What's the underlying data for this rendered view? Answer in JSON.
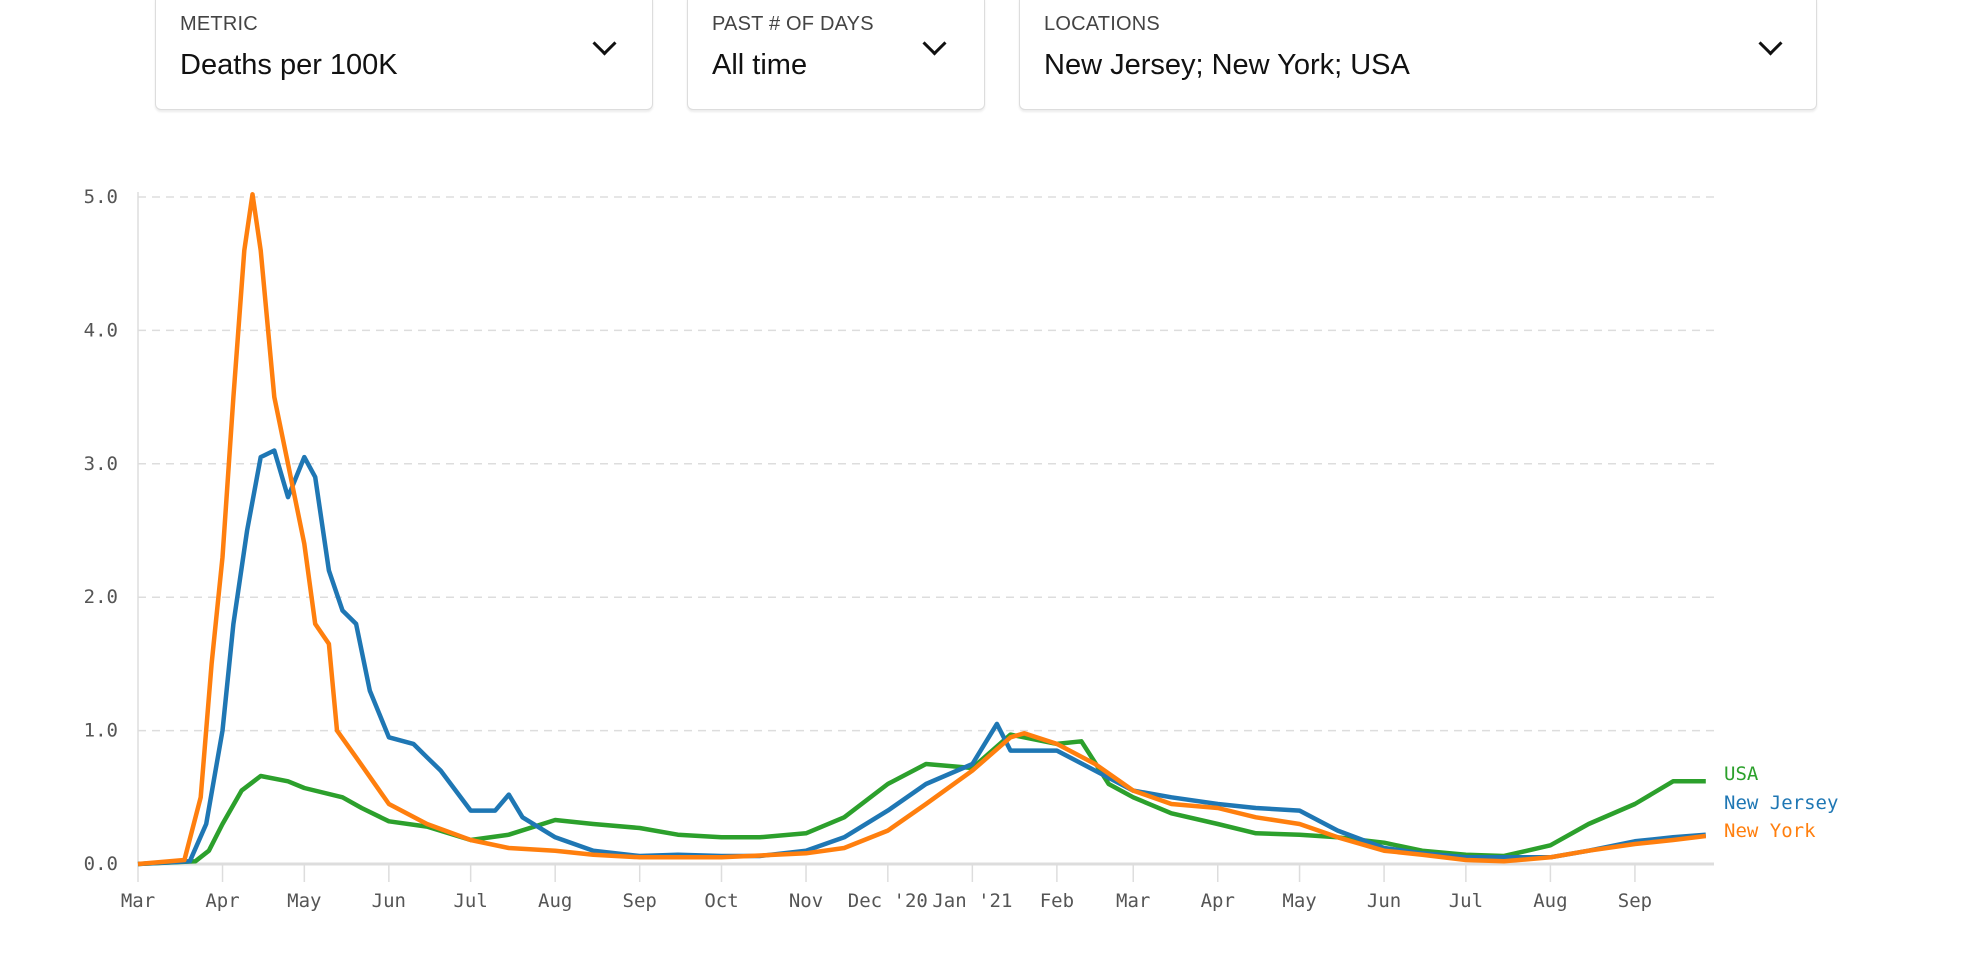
{
  "controls": {
    "metric": {
      "label": "METRIC",
      "value": "Deaths per 100K"
    },
    "days": {
      "label": "PAST # OF DAYS",
      "value": "All time"
    },
    "locations": {
      "label": "LOCATIONS",
      "value": "New Jersey; New York; USA"
    }
  },
  "chart_data": {
    "type": "line",
    "title": "",
    "xlabel": "",
    "ylabel": "Deaths per 100K",
    "xlim": [
      "2020-03-01",
      "2021-09-30"
    ],
    "ylim": [
      0,
      5
    ],
    "grid": true,
    "legend_position": "right-end-of-lines",
    "y_ticks": [
      "0.0",
      "1.0",
      "2.0",
      "3.0",
      "4.0",
      "5.0"
    ],
    "x_ticks": [
      {
        "date": "2020-03-01",
        "label": "Mar"
      },
      {
        "date": "2020-04-01",
        "label": "Apr"
      },
      {
        "date": "2020-05-01",
        "label": "May"
      },
      {
        "date": "2020-06-01",
        "label": "Jun"
      },
      {
        "date": "2020-07-01",
        "label": "Jul"
      },
      {
        "date": "2020-08-01",
        "label": "Aug"
      },
      {
        "date": "2020-09-01",
        "label": "Sep"
      },
      {
        "date": "2020-10-01",
        "label": "Oct"
      },
      {
        "date": "2020-11-01",
        "label": "Nov"
      },
      {
        "date": "2020-12-01",
        "label": "Dec '20"
      },
      {
        "date": "2021-01-01",
        "label": "Jan '21"
      },
      {
        "date": "2021-02-01",
        "label": "Feb"
      },
      {
        "date": "2021-03-01",
        "label": "Mar"
      },
      {
        "date": "2021-04-01",
        "label": "Apr"
      },
      {
        "date": "2021-05-01",
        "label": "May"
      },
      {
        "date": "2021-06-01",
        "label": "Jun"
      },
      {
        "date": "2021-07-01",
        "label": "Jul"
      },
      {
        "date": "2021-08-01",
        "label": "Aug"
      },
      {
        "date": "2021-09-01",
        "label": "Sep"
      }
    ],
    "series": [
      {
        "name": "USA",
        "color": "#2ca02c",
        "points": [
          [
            "2020-03-01",
            0
          ],
          [
            "2020-03-22",
            0.02
          ],
          [
            "2020-03-27",
            0.1
          ],
          [
            "2020-04-01",
            0.3
          ],
          [
            "2020-04-08",
            0.55
          ],
          [
            "2020-04-15",
            0.66
          ],
          [
            "2020-04-25",
            0.62
          ],
          [
            "2020-05-01",
            0.57
          ],
          [
            "2020-05-15",
            0.5
          ],
          [
            "2020-05-22",
            0.42
          ],
          [
            "2020-06-01",
            0.32
          ],
          [
            "2020-06-15",
            0.28
          ],
          [
            "2020-07-01",
            0.18
          ],
          [
            "2020-07-15",
            0.22
          ],
          [
            "2020-08-01",
            0.33
          ],
          [
            "2020-08-15",
            0.3
          ],
          [
            "2020-09-01",
            0.27
          ],
          [
            "2020-09-15",
            0.22
          ],
          [
            "2020-10-01",
            0.2
          ],
          [
            "2020-10-15",
            0.2
          ],
          [
            "2020-11-01",
            0.23
          ],
          [
            "2020-11-15",
            0.35
          ],
          [
            "2020-12-01",
            0.6
          ],
          [
            "2020-12-15",
            0.75
          ],
          [
            "2021-01-01",
            0.72
          ],
          [
            "2021-01-15",
            0.97
          ],
          [
            "2021-02-01",
            0.9
          ],
          [
            "2021-02-10",
            0.92
          ],
          [
            "2021-02-20",
            0.6
          ],
          [
            "2021-03-01",
            0.5
          ],
          [
            "2021-03-15",
            0.38
          ],
          [
            "2021-04-01",
            0.3
          ],
          [
            "2021-04-15",
            0.23
          ],
          [
            "2021-05-01",
            0.22
          ],
          [
            "2021-05-15",
            0.2
          ],
          [
            "2021-06-01",
            0.16
          ],
          [
            "2021-06-15",
            0.1
          ],
          [
            "2021-07-01",
            0.07
          ],
          [
            "2021-07-15",
            0.06
          ],
          [
            "2021-08-01",
            0.14
          ],
          [
            "2021-08-15",
            0.3
          ],
          [
            "2021-09-01",
            0.45
          ],
          [
            "2021-09-15",
            0.62
          ],
          [
            "2021-09-27",
            0.62
          ]
        ]
      },
      {
        "name": "New Jersey",
        "color": "#1f77b4",
        "points": [
          [
            "2020-03-01",
            0
          ],
          [
            "2020-03-20",
            0.02
          ],
          [
            "2020-03-26",
            0.3
          ],
          [
            "2020-04-01",
            1.0
          ],
          [
            "2020-04-05",
            1.8
          ],
          [
            "2020-04-10",
            2.5
          ],
          [
            "2020-04-15",
            3.05
          ],
          [
            "2020-04-20",
            3.1
          ],
          [
            "2020-04-25",
            2.75
          ],
          [
            "2020-05-01",
            3.05
          ],
          [
            "2020-05-05",
            2.9
          ],
          [
            "2020-05-10",
            2.2
          ],
          [
            "2020-05-15",
            1.9
          ],
          [
            "2020-05-20",
            1.8
          ],
          [
            "2020-05-25",
            1.3
          ],
          [
            "2020-06-01",
            0.95
          ],
          [
            "2020-06-10",
            0.9
          ],
          [
            "2020-06-15",
            0.8
          ],
          [
            "2020-06-20",
            0.7
          ],
          [
            "2020-07-01",
            0.4
          ],
          [
            "2020-07-10",
            0.4
          ],
          [
            "2020-07-15",
            0.52
          ],
          [
            "2020-07-20",
            0.35
          ],
          [
            "2020-08-01",
            0.2
          ],
          [
            "2020-08-15",
            0.1
          ],
          [
            "2020-09-01",
            0.06
          ],
          [
            "2020-09-15",
            0.07
          ],
          [
            "2020-10-01",
            0.06
          ],
          [
            "2020-10-15",
            0.06
          ],
          [
            "2020-11-01",
            0.1
          ],
          [
            "2020-11-15",
            0.2
          ],
          [
            "2020-12-01",
            0.4
          ],
          [
            "2020-12-15",
            0.6
          ],
          [
            "2021-01-01",
            0.75
          ],
          [
            "2021-01-10",
            1.05
          ],
          [
            "2021-01-15",
            0.85
          ],
          [
            "2021-02-01",
            0.85
          ],
          [
            "2021-02-15",
            0.7
          ],
          [
            "2021-03-01",
            0.55
          ],
          [
            "2021-03-15",
            0.5
          ],
          [
            "2021-04-01",
            0.45
          ],
          [
            "2021-04-15",
            0.42
          ],
          [
            "2021-05-01",
            0.4
          ],
          [
            "2021-05-15",
            0.25
          ],
          [
            "2021-06-01",
            0.12
          ],
          [
            "2021-06-15",
            0.08
          ],
          [
            "2021-07-01",
            0.05
          ],
          [
            "2021-07-15",
            0.05
          ],
          [
            "2021-08-01",
            0.05
          ],
          [
            "2021-08-15",
            0.1
          ],
          [
            "2021-09-01",
            0.17
          ],
          [
            "2021-09-15",
            0.2
          ],
          [
            "2021-09-27",
            0.22
          ]
        ]
      },
      {
        "name": "New York",
        "color": "#ff7f0e",
        "points": [
          [
            "2020-03-01",
            0
          ],
          [
            "2020-03-18",
            0.03
          ],
          [
            "2020-03-24",
            0.5
          ],
          [
            "2020-03-28",
            1.5
          ],
          [
            "2020-04-01",
            2.3
          ],
          [
            "2020-04-05",
            3.5
          ],
          [
            "2020-04-09",
            4.6
          ],
          [
            "2020-04-12",
            5.02
          ],
          [
            "2020-04-15",
            4.6
          ],
          [
            "2020-04-20",
            3.5
          ],
          [
            "2020-04-25",
            3.0
          ],
          [
            "2020-05-01",
            2.4
          ],
          [
            "2020-05-05",
            1.8
          ],
          [
            "2020-05-10",
            1.65
          ],
          [
            "2020-05-13",
            1.0
          ],
          [
            "2020-05-20",
            0.8
          ],
          [
            "2020-06-01",
            0.45
          ],
          [
            "2020-06-15",
            0.3
          ],
          [
            "2020-07-01",
            0.18
          ],
          [
            "2020-07-15",
            0.12
          ],
          [
            "2020-08-01",
            0.1
          ],
          [
            "2020-08-15",
            0.07
          ],
          [
            "2020-09-01",
            0.05
          ],
          [
            "2020-10-01",
            0.05
          ],
          [
            "2020-11-01",
            0.08
          ],
          [
            "2020-11-15",
            0.12
          ],
          [
            "2020-12-01",
            0.25
          ],
          [
            "2020-12-15",
            0.45
          ],
          [
            "2021-01-01",
            0.7
          ],
          [
            "2021-01-15",
            0.95
          ],
          [
            "2021-01-20",
            0.98
          ],
          [
            "2021-02-01",
            0.9
          ],
          [
            "2021-02-15",
            0.75
          ],
          [
            "2021-03-01",
            0.55
          ],
          [
            "2021-03-15",
            0.45
          ],
          [
            "2021-04-01",
            0.42
          ],
          [
            "2021-04-15",
            0.35
          ],
          [
            "2021-05-01",
            0.3
          ],
          [
            "2021-05-15",
            0.2
          ],
          [
            "2021-06-01",
            0.1
          ],
          [
            "2021-06-15",
            0.07
          ],
          [
            "2021-07-01",
            0.03
          ],
          [
            "2021-07-15",
            0.02
          ],
          [
            "2021-08-01",
            0.05
          ],
          [
            "2021-08-15",
            0.1
          ],
          [
            "2021-09-01",
            0.15
          ],
          [
            "2021-09-15",
            0.18
          ],
          [
            "2021-09-27",
            0.21
          ]
        ]
      }
    ]
  }
}
